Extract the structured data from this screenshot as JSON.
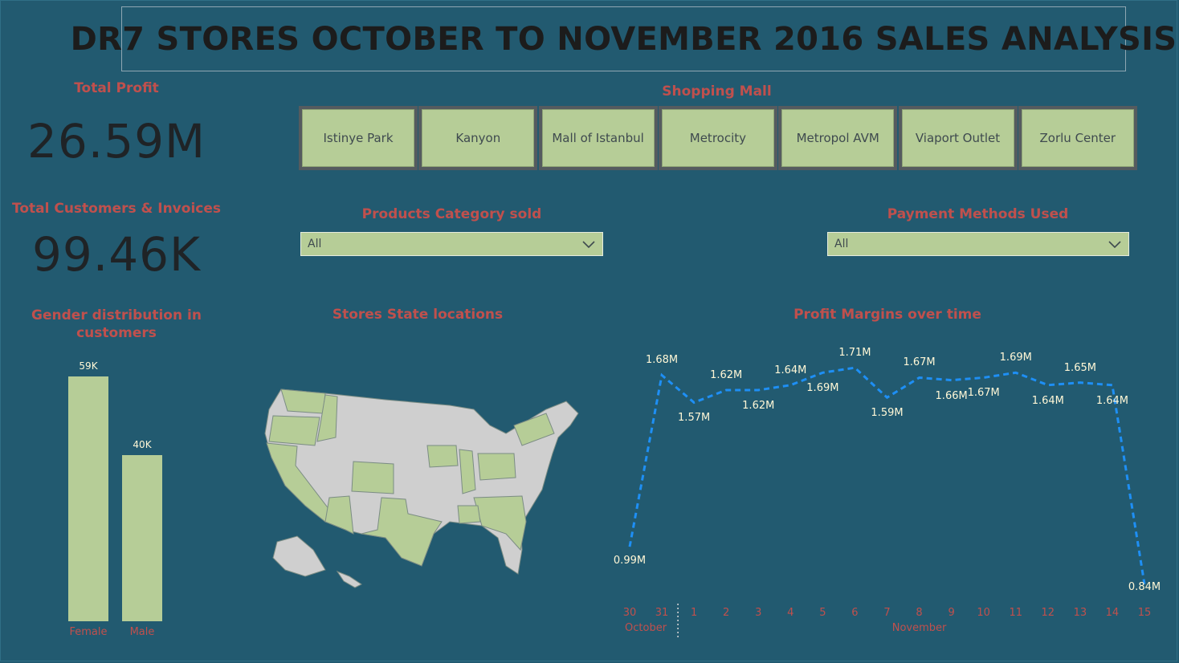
{
  "title": "DR7 STORES OCTOBER TO NOVEMBER 2016 SALES ANALYSIS",
  "kpis": {
    "profit_label": "Total Profit",
    "profit_value": "26.59M",
    "customers_label": "Total Customers & Invoices",
    "customers_value": "99.46K"
  },
  "shopping_mall": {
    "label": "Shopping Mall",
    "options": [
      "Istinye Park",
      "Kanyon",
      "Mall of Istanbul",
      "Metrocity",
      "Metropol AVM",
      "Viaport Outlet",
      "Zorlu Center"
    ]
  },
  "filters": {
    "category_label": "Products Category sold",
    "category_value": "All",
    "payment_label": "Payment Methods Used",
    "payment_value": "All"
  },
  "map": {
    "title": "Stores State locations"
  },
  "colors": {
    "background": "#225a70",
    "accent_green": "#b6cd97",
    "title_red": "#c0504d",
    "line_blue": "#1e8ff5",
    "label_cream": "#fff7d6"
  },
  "chart_data": [
    {
      "type": "bar",
      "title": "Gender distribution in customers",
      "categories": [
        "Female",
        "Male"
      ],
      "values": [
        59000,
        40000
      ],
      "value_labels": [
        "59K",
        "40K"
      ]
    },
    {
      "type": "line",
      "title": "Profit Margins over time",
      "x": [
        "30",
        "31",
        "1",
        "2",
        "3",
        "4",
        "5",
        "6",
        "7",
        "8",
        "9",
        "10",
        "11",
        "12",
        "13",
        "14",
        "15"
      ],
      "x_groups": [
        {
          "label": "October",
          "from": "30",
          "to": "31"
        },
        {
          "label": "November",
          "from": "1",
          "to": "15"
        }
      ],
      "values": [
        0.99,
        1.68,
        1.57,
        1.62,
        1.62,
        1.64,
        1.69,
        1.71,
        1.59,
        1.67,
        1.66,
        1.67,
        1.69,
        1.64,
        1.65,
        1.64,
        0.84
      ],
      "value_labels": [
        "0.99M",
        "1.68M",
        "1.57M",
        "1.62M",
        "1.62M",
        "1.64M",
        "1.69M",
        "1.71M",
        "1.59M",
        "1.67M",
        "1.66M",
        "1.67M",
        "1.69M",
        "1.64M",
        "1.65M",
        "1.64M",
        "0.84M"
      ],
      "line_style": "dashed"
    }
  ]
}
